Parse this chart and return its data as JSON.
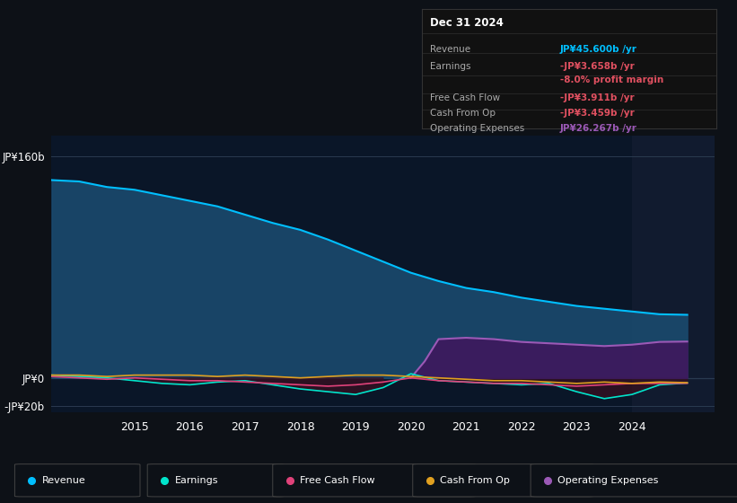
{
  "bg_color": "#0d1117",
  "chart_bg_dark": "#0a1628",
  "highlight_bg": "#162035",
  "y_label_160": "JP¥160b",
  "y_label_0": "JP¥0",
  "y_label_neg20": "-JP¥20b",
  "ylim": [
    -25,
    175
  ],
  "x_start_year": 2013.5,
  "x_end_year": 2025.5,
  "x_ticks": [
    2015,
    2016,
    2017,
    2018,
    2019,
    2020,
    2021,
    2022,
    2023,
    2024
  ],
  "revenue_color": "#00bfff",
  "revenue_fill": "#1a4a6e",
  "earnings_color": "#00e5cc",
  "fcf_color": "#e0427a",
  "cashfromop_color": "#e0a020",
  "opex_color": "#9b59b6",
  "opex_fill": "#3d1a5e",
  "info_box": {
    "title": "Dec 31 2024",
    "rows": [
      {
        "label": "Revenue",
        "value": "JP¥45.600b /yr",
        "value_color": "#00bfff",
        "sub": false
      },
      {
        "label": "Earnings",
        "value": "-JP¥3.658b /yr",
        "value_color": "#e05060",
        "sub": false
      },
      {
        "label": "",
        "value": "-8.0% profit margin",
        "value_color": "#e05060",
        "sub": true
      },
      {
        "label": "Free Cash Flow",
        "value": "-JP¥3.911b /yr",
        "value_color": "#e05060",
        "sub": false
      },
      {
        "label": "Cash From Op",
        "value": "-JP¥3.459b /yr",
        "value_color": "#e05060",
        "sub": false
      },
      {
        "label": "Operating Expenses",
        "value": "JP¥26.267b /yr",
        "value_color": "#9b59b6",
        "sub": false
      }
    ]
  },
  "legend": [
    {
      "label": "Revenue",
      "color": "#00bfff"
    },
    {
      "label": "Earnings",
      "color": "#00e5cc"
    },
    {
      "label": "Free Cash Flow",
      "color": "#e0427a"
    },
    {
      "label": "Cash From Op",
      "color": "#e0a020"
    },
    {
      "label": "Operating Expenses",
      "color": "#9b59b6"
    }
  ],
  "revenue_x": [
    2013.5,
    2014.0,
    2014.5,
    2015.0,
    2015.5,
    2016.0,
    2016.5,
    2017.0,
    2017.5,
    2018.0,
    2018.5,
    2019.0,
    2019.5,
    2020.0,
    2020.5,
    2021.0,
    2021.5,
    2022.0,
    2022.5,
    2023.0,
    2023.5,
    2024.0,
    2024.5,
    2025.0
  ],
  "revenue_y": [
    143,
    142,
    138,
    136,
    132,
    128,
    124,
    118,
    112,
    107,
    100,
    92,
    84,
    76,
    70,
    65,
    62,
    58,
    55,
    52,
    50,
    48,
    46,
    45.6
  ],
  "earnings_x": [
    2013.5,
    2014.0,
    2014.5,
    2015.0,
    2015.5,
    2016.0,
    2016.5,
    2017.0,
    2017.5,
    2018.0,
    2018.5,
    2019.0,
    2019.5,
    2020.0,
    2020.5,
    2021.0,
    2021.5,
    2022.0,
    2022.5,
    2023.0,
    2023.5,
    2024.0,
    2024.5,
    2025.0
  ],
  "earnings_y": [
    2,
    1,
    0,
    -2,
    -4,
    -5,
    -3,
    -2,
    -5,
    -8,
    -10,
    -12,
    -7,
    3,
    -2,
    -3,
    -4,
    -5,
    -4,
    -10,
    -15,
    -12,
    -5,
    -3.658
  ],
  "fcf_x": [
    2013.5,
    2014.0,
    2014.5,
    2015.0,
    2015.5,
    2016.0,
    2016.5,
    2017.0,
    2017.5,
    2018.0,
    2018.5,
    2019.0,
    2019.5,
    2020.0,
    2020.5,
    2021.0,
    2021.5,
    2022.0,
    2022.5,
    2023.0,
    2023.5,
    2024.0,
    2024.5,
    2025.0
  ],
  "fcf_y": [
    1,
    0,
    -1,
    0,
    -1,
    -2,
    -2,
    -3,
    -4,
    -5,
    -6,
    -5,
    -3,
    0,
    -2,
    -3,
    -4,
    -4,
    -5,
    -6,
    -5,
    -4,
    -4,
    -3.911
  ],
  "cashfromop_x": [
    2013.5,
    2014.0,
    2014.5,
    2015.0,
    2015.5,
    2016.0,
    2016.5,
    2017.0,
    2017.5,
    2018.0,
    2018.5,
    2019.0,
    2019.5,
    2020.0,
    2020.5,
    2021.0,
    2021.5,
    2022.0,
    2022.5,
    2023.0,
    2023.5,
    2024.0,
    2024.5,
    2025.0
  ],
  "cashfromop_y": [
    2,
    2,
    1,
    2,
    2,
    2,
    1,
    2,
    1,
    0,
    1,
    2,
    2,
    1,
    0,
    -1,
    -2,
    -2,
    -3,
    -4,
    -3,
    -4,
    -3,
    -3.459
  ],
  "opex_x": [
    2020.0,
    2020.25,
    2020.5,
    2021.0,
    2021.5,
    2022.0,
    2022.5,
    2023.0,
    2023.5,
    2024.0,
    2024.5,
    2025.0
  ],
  "opex_y": [
    0,
    12,
    28,
    29,
    28,
    26,
    25,
    24,
    23,
    24,
    26,
    26.267
  ]
}
